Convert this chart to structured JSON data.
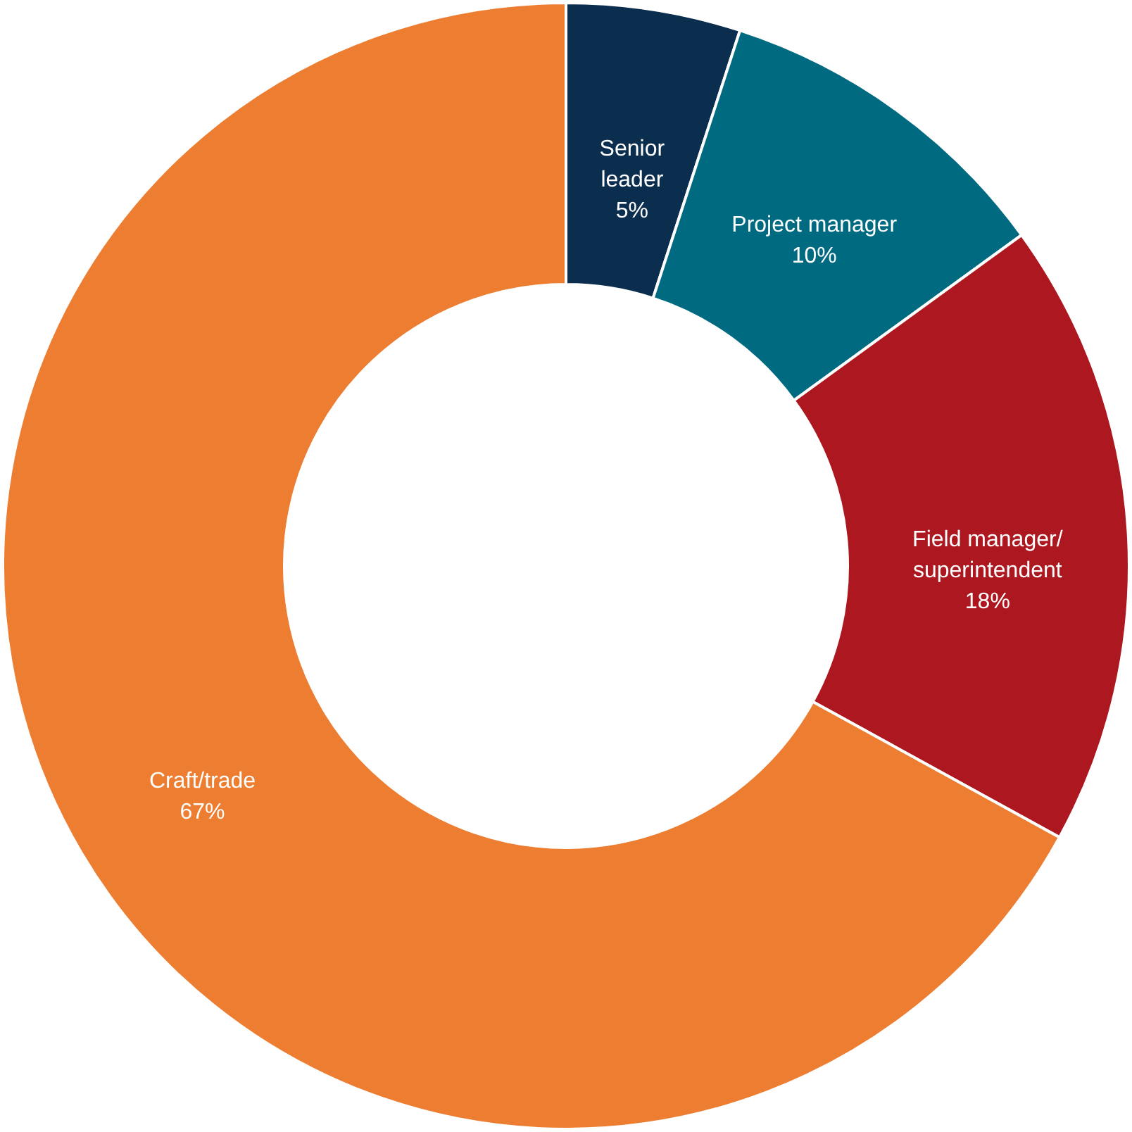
{
  "chart_data": {
    "type": "donut",
    "categories": [
      "Senior leader",
      "Project manager",
      "Field manager/ superintendent",
      "Craft/trade"
    ],
    "values": [
      5,
      10,
      18,
      67
    ],
    "colors": [
      "#0b2d4e",
      "#006a80",
      "#ad1820",
      "#ed7d31"
    ],
    "value_labels": [
      "5%",
      "10%",
      "18%",
      "67%"
    ]
  }
}
